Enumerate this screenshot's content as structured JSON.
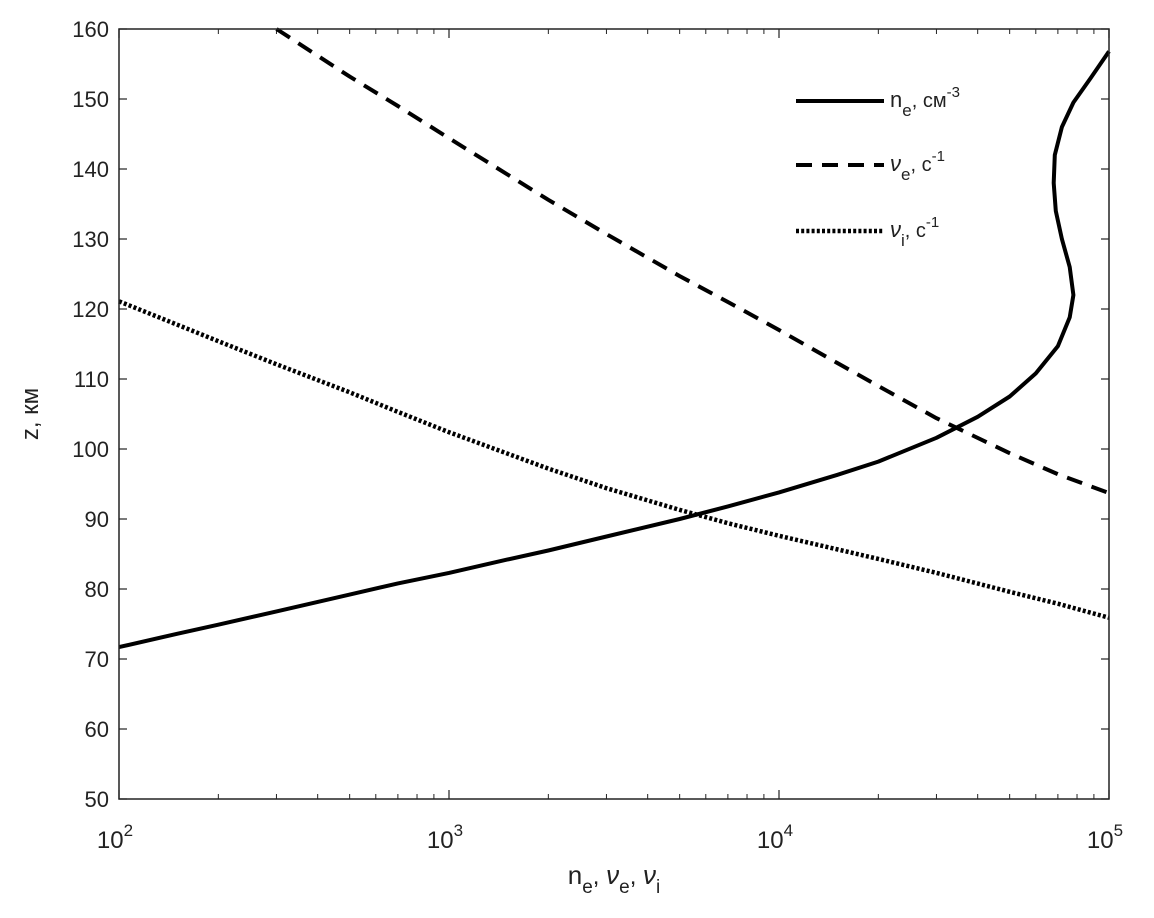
{
  "chart_data": {
    "type": "line",
    "xlabel": {
      "parts": [
        {
          "base": "n",
          "sub": "e",
          "sep": ", "
        },
        {
          "base": "ν",
          "sub": "e",
          "sep": ", "
        },
        {
          "base": "ν",
          "sub": "i",
          "sep": ""
        }
      ]
    },
    "ylabel": "z, км",
    "xscale": "log",
    "xlim": [
      100,
      100000
    ],
    "ylim": [
      50,
      160
    ],
    "xticks": [
      {
        "value": 100,
        "base": "10",
        "exp": "2"
      },
      {
        "value": 1000,
        "base": "10",
        "exp": "3"
      },
      {
        "value": 10000,
        "base": "10",
        "exp": "4"
      },
      {
        "value": 100000,
        "base": "10",
        "exp": "5"
      }
    ],
    "yticks": [
      50,
      60,
      70,
      80,
      90,
      100,
      110,
      120,
      130,
      140,
      150,
      160
    ],
    "grid": false,
    "legend_position": "top-right",
    "colors": {
      "line": "#000000",
      "axis": "#222222"
    },
    "series": [
      {
        "key": "ne",
        "style": "solid",
        "label": {
          "base": "n",
          "sub": "e",
          "unit": ", см",
          "sup": "-3"
        },
        "points": [
          [
            100,
            71.7
          ],
          [
            150,
            73.6
          ],
          [
            200,
            74.9
          ],
          [
            300,
            76.8
          ],
          [
            500,
            79.2
          ],
          [
            700,
            80.8
          ],
          [
            1000,
            82.3
          ],
          [
            1500,
            84.2
          ],
          [
            2000,
            85.5
          ],
          [
            3000,
            87.5
          ],
          [
            5000,
            90.0
          ],
          [
            7000,
            91.8
          ],
          [
            10000,
            93.8
          ],
          [
            15000,
            96.3
          ],
          [
            20000,
            98.2
          ],
          [
            30000,
            101.6
          ],
          [
            40000,
            104.6
          ],
          [
            50000,
            107.5
          ],
          [
            60000,
            110.8
          ],
          [
            70000,
            114.7
          ],
          [
            76000,
            118.8
          ],
          [
            78000,
            122.0
          ],
          [
            76000,
            126.0
          ],
          [
            72000,
            130.0
          ],
          [
            69000,
            134.0
          ],
          [
            68000,
            138.0
          ],
          [
            68500,
            142.0
          ],
          [
            72000,
            146.0
          ],
          [
            78000,
            149.5
          ],
          [
            88000,
            153.0
          ],
          [
            100000,
            156.8
          ]
        ]
      },
      {
        "key": "nu_e",
        "style": "dashed",
        "label": {
          "base": "ν",
          "sub": "e",
          "unit": ", с",
          "sup": "-1"
        },
        "points": [
          [
            300,
            160.0
          ],
          [
            500,
            153.2
          ],
          [
            700,
            149.0
          ],
          [
            1000,
            144.4
          ],
          [
            2000,
            135.6
          ],
          [
            3000,
            130.7
          ],
          [
            5000,
            124.7
          ],
          [
            7000,
            121.0
          ],
          [
            10000,
            117.0
          ],
          [
            15000,
            112.3
          ],
          [
            20000,
            109.0
          ],
          [
            30000,
            104.4
          ],
          [
            50000,
            99.4
          ],
          [
            70000,
            96.4
          ],
          [
            100000,
            93.7
          ]
        ]
      },
      {
        "key": "nu_i",
        "style": "dotted",
        "label": {
          "base": "ν",
          "sub": "i",
          "unit": ", с",
          "sup": "-1"
        },
        "points": [
          [
            100,
            121.1
          ],
          [
            200,
            115.4
          ],
          [
            300,
            112.1
          ],
          [
            500,
            108.1
          ],
          [
            700,
            105.3
          ],
          [
            1000,
            102.4
          ],
          [
            2000,
            97.2
          ],
          [
            3000,
            94.4
          ],
          [
            5000,
            91.3
          ],
          [
            7000,
            89.4
          ],
          [
            10000,
            87.6
          ],
          [
            20000,
            84.3
          ],
          [
            30000,
            82.3
          ],
          [
            50000,
            79.6
          ],
          [
            70000,
            77.9
          ],
          [
            100000,
            75.9
          ]
        ]
      }
    ]
  }
}
